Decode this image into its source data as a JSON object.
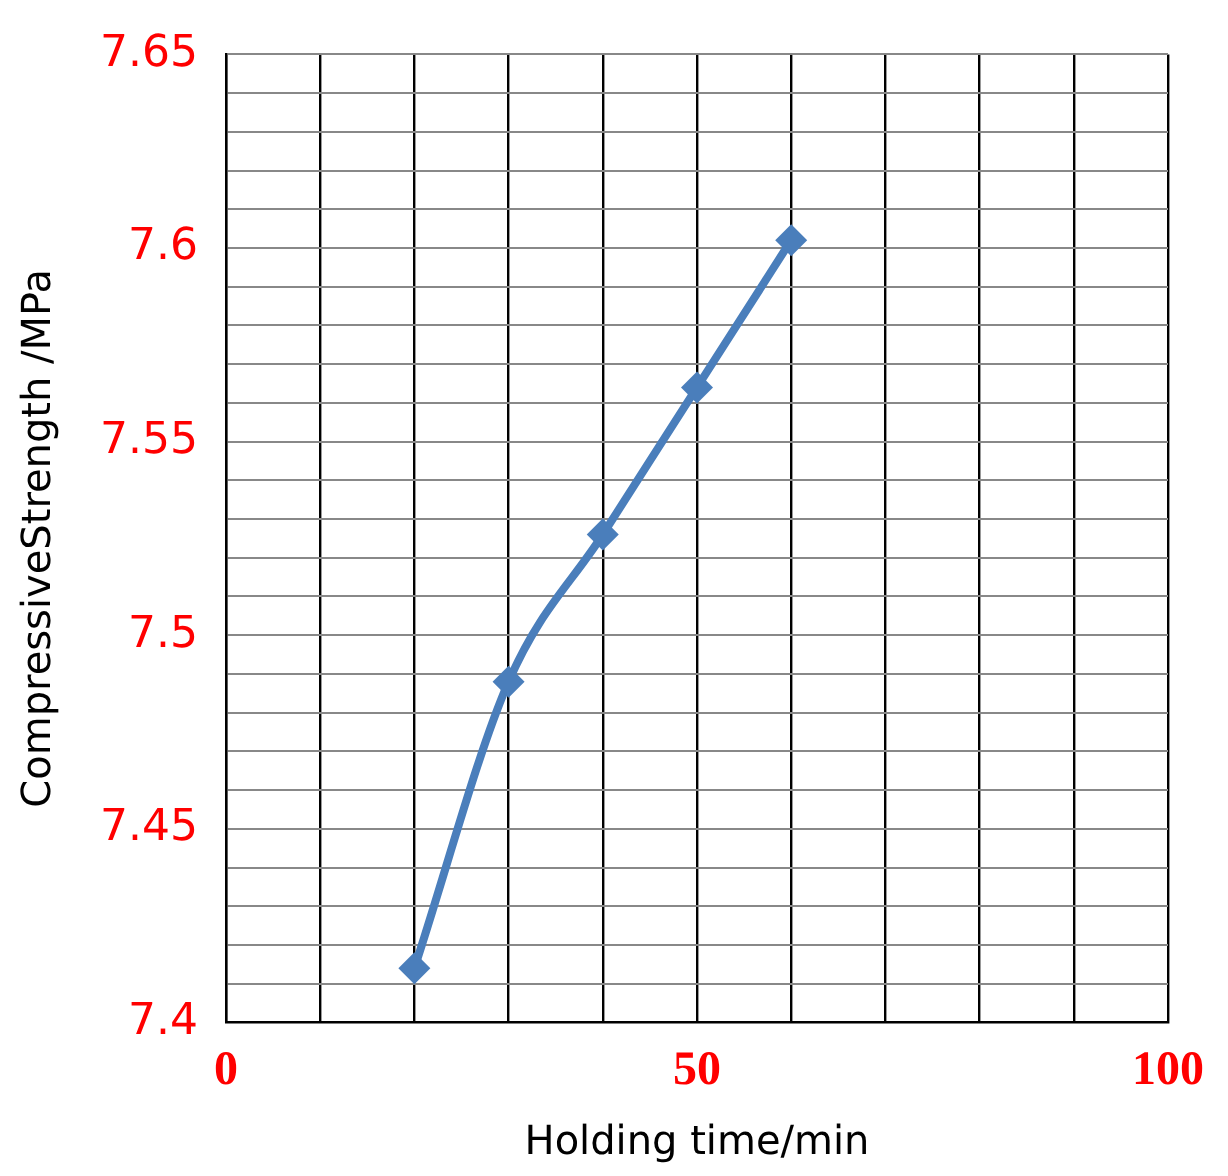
{
  "chart_data": {
    "type": "line",
    "xlabel": "Holding time/min",
    "ylabel": "CompressiveStrength /MPa",
    "x": [
      20,
      30,
      40,
      50,
      60
    ],
    "series": [
      {
        "color": "#4a7ebb",
        "values": [
          7.414,
          7.488,
          7.526,
          7.564,
          7.602
        ]
      }
    ],
    "xlim": [
      0,
      100
    ],
    "xticks": [
      0,
      {
        "value": 10,
        "label": null
      },
      {
        "value": 20,
        "label": null
      },
      {
        "value": 30,
        "label": null
      },
      {
        "value": 40,
        "label": null
      },
      50,
      {
        "value": 60,
        "label": null
      },
      {
        "value": 70,
        "label": null
      },
      {
        "value": 80,
        "label": null
      },
      {
        "value": 90,
        "label": null
      },
      100
    ],
    "ylim": [
      7.4,
      7.65
    ],
    "yticks": [
      7.4,
      {
        "value": 7.41,
        "label": null
      },
      {
        "value": 7.42,
        "label": null
      },
      {
        "value": 7.43,
        "label": null
      },
      {
        "value": 7.44,
        "label": null
      },
      7.45,
      {
        "value": 7.46,
        "label": null
      },
      {
        "value": 7.47,
        "label": null
      },
      {
        "value": 7.48,
        "label": null
      },
      {
        "value": 7.49,
        "label": null
      },
      7.5,
      {
        "value": 7.51,
        "label": null
      },
      {
        "value": 7.52,
        "label": null
      },
      {
        "value": 7.53,
        "label": null
      },
      {
        "value": 7.54,
        "label": null
      },
      7.55,
      {
        "value": 7.56,
        "label": null
      },
      {
        "value": 7.57,
        "label": null
      },
      {
        "value": 7.58,
        "label": null
      },
      {
        "value": 7.59,
        "label": null
      },
      7.6,
      {
        "value": 7.61,
        "label": null
      },
      {
        "value": 7.62,
        "label": null
      },
      {
        "value": 7.63,
        "label": null
      },
      {
        "value": 7.64,
        "label": null
      },
      7.65
    ],
    "grid": true,
    "legend": false,
    "marker": "diamond",
    "line_style": "solid"
  }
}
